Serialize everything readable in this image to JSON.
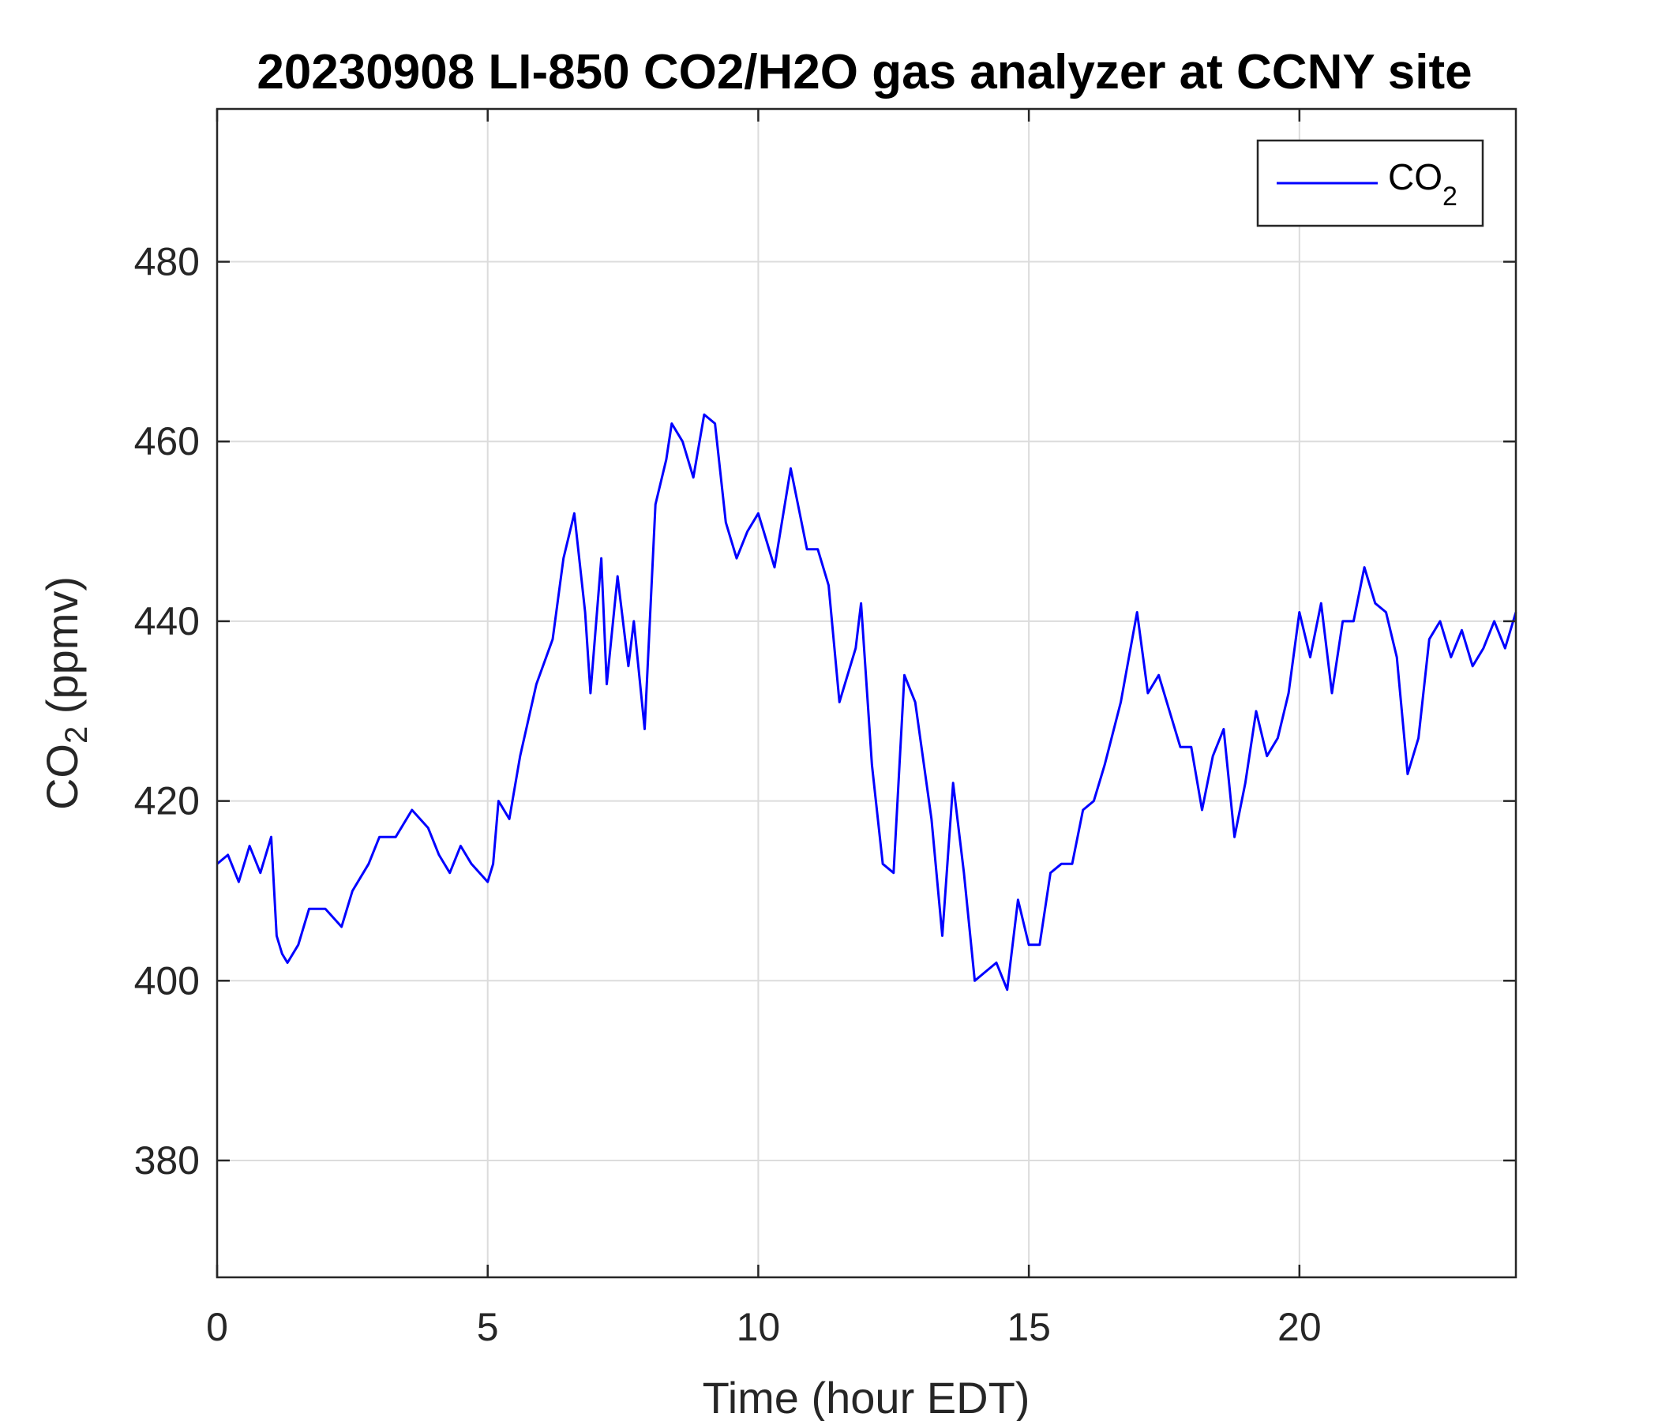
{
  "chart_data": {
    "type": "line",
    "title": "20230908 LI-850 CO2/H2O gas analyzer at CCNY site",
    "xlabel": "Time (hour EDT)",
    "ylabel": {
      "main": "CO",
      "sub": "2",
      "unit": " (ppmv)"
    },
    "xlim": [
      0,
      24
    ],
    "ylim": [
      367,
      497
    ],
    "xticks": [
      0,
      5,
      10,
      15,
      20
    ],
    "yticks": [
      380,
      400,
      420,
      440,
      460,
      480
    ],
    "grid": true,
    "legend": {
      "position": "top-right",
      "entries": [
        {
          "main": "CO",
          "sub": "2"
        }
      ]
    },
    "series": [
      {
        "name": "CO2",
        "color": "#0000ff",
        "x": [
          0.0,
          0.2,
          0.4,
          0.6,
          0.8,
          1.0,
          1.1,
          1.2,
          1.3,
          1.5,
          1.7,
          2.0,
          2.3,
          2.5,
          2.8,
          3.0,
          3.3,
          3.6,
          3.9,
          4.1,
          4.3,
          4.5,
          4.7,
          5.0,
          5.1,
          5.2,
          5.4,
          5.6,
          5.9,
          6.2,
          6.4,
          6.6,
          6.8,
          6.9,
          7.1,
          7.2,
          7.4,
          7.6,
          7.7,
          7.9,
          8.1,
          8.3,
          8.4,
          8.6,
          8.8,
          9.0,
          9.2,
          9.4,
          9.6,
          9.8,
          10.0,
          10.3,
          10.6,
          10.9,
          11.1,
          11.3,
          11.5,
          11.8,
          11.9,
          12.1,
          12.3,
          12.5,
          12.7,
          12.9,
          13.2,
          13.4,
          13.6,
          13.8,
          14.0,
          14.2,
          14.4,
          14.6,
          14.8,
          15.0,
          15.2,
          15.4,
          15.6,
          15.8,
          16.0,
          16.2,
          16.4,
          16.7,
          17.0,
          17.2,
          17.4,
          17.6,
          17.8,
          18.0,
          18.2,
          18.4,
          18.6,
          18.8,
          19.0,
          19.2,
          19.4,
          19.6,
          19.8,
          20.0,
          20.2,
          20.4,
          20.6,
          20.8,
          21.0,
          21.2,
          21.4,
          21.6,
          21.8,
          22.0,
          22.2,
          22.4,
          22.6,
          22.8,
          23.0,
          23.2,
          23.4,
          23.6,
          23.8,
          24.0
        ],
        "y": [
          413,
          414,
          411,
          415,
          412,
          416,
          405,
          403,
          402,
          404,
          408,
          408,
          406,
          410,
          413,
          416,
          416,
          419,
          417,
          414,
          412,
          415,
          413,
          411,
          413,
          420,
          418,
          425,
          433,
          438,
          447,
          452,
          441,
          432,
          447,
          433,
          445,
          435,
          440,
          428,
          453,
          458,
          462,
          460,
          456,
          463,
          462,
          451,
          447,
          450,
          452,
          446,
          457,
          448,
          448,
          444,
          431,
          437,
          442,
          424,
          413,
          412,
          434,
          431,
          418,
          405,
          422,
          412,
          400,
          401,
          402,
          399,
          409,
          404,
          404,
          412,
          413,
          413,
          419,
          420,
          424,
          431,
          441,
          432,
          434,
          430,
          426,
          426,
          419,
          425,
          428,
          416,
          422,
          430,
          425,
          427,
          432,
          441,
          436,
          442,
          432,
          440,
          440,
          446,
          442,
          441,
          436,
          423,
          427,
          438,
          440,
          436,
          439,
          435,
          437,
          440,
          437,
          441
        ]
      }
    ]
  }
}
